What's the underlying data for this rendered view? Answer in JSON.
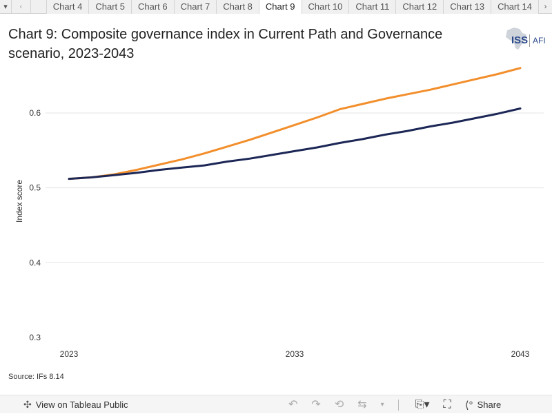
{
  "tabs": {
    "nav_menu_icon": "triangle-down-icon",
    "items": [
      "Chart 4",
      "Chart 5",
      "Chart 6",
      "Chart 7",
      "Chart 8",
      "Chart 9",
      "Chart 10",
      "Chart 11",
      "Chart 12",
      "Chart 13",
      "Chart 14"
    ],
    "active": "Chart 9"
  },
  "header": {
    "title": "Chart 9: Composite governance index in Current Path and Governance scenario, 2023-2043",
    "logo_text": "ISS",
    "logo_sub": "AFI"
  },
  "chart_data": {
    "type": "line",
    "title": "Chart 9: Composite governance index in Current Path and Governance scenario, 2023-2043",
    "xlabel": "",
    "ylabel": "Index score",
    "x": [
      2023,
      2024,
      2025,
      2026,
      2027,
      2028,
      2029,
      2030,
      2031,
      2032,
      2033,
      2034,
      2035,
      2036,
      2037,
      2038,
      2039,
      2040,
      2041,
      2042,
      2043
    ],
    "xticks": [
      "2023",
      "2033",
      "2043"
    ],
    "yticks": [
      "0.3",
      "0.4",
      "0.5",
      "0.6"
    ],
    "ylim": [
      0.3,
      0.68
    ],
    "grid": true,
    "series": [
      {
        "name": "Governance scenario",
        "color": "#f28e2b",
        "values": [
          0.512,
          0.514,
          0.518,
          0.524,
          0.531,
          0.538,
          0.546,
          0.555,
          0.564,
          0.574,
          0.584,
          0.594,
          0.605,
          0.612,
          0.619,
          0.625,
          0.631,
          0.638,
          0.645,
          0.652,
          0.66
        ]
      },
      {
        "name": "Current Path",
        "color": "#1c2756",
        "values": [
          0.512,
          0.514,
          0.517,
          0.52,
          0.524,
          0.527,
          0.53,
          0.535,
          0.539,
          0.544,
          0.549,
          0.554,
          0.56,
          0.565,
          0.571,
          0.576,
          0.582,
          0.587,
          0.593,
          0.599,
          0.606
        ]
      }
    ]
  },
  "source": "Source: IFs 8.14",
  "footer": {
    "view_label": "View on Tableau Public",
    "share_label": "Share"
  }
}
